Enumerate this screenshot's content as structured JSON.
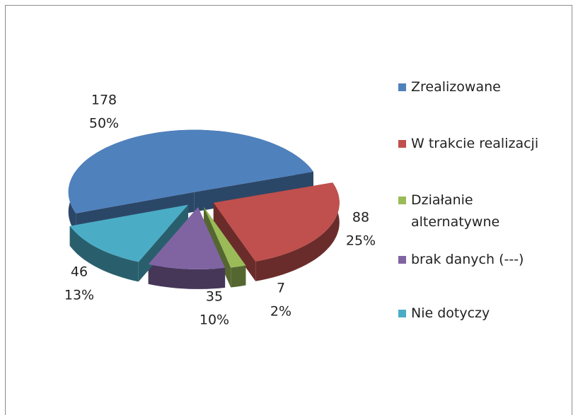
{
  "chart_data": {
    "type": "pie",
    "categories": [
      "Zrealizowane",
      "W trakcie realizacji",
      "Działanie alternatywne",
      "brak danych (---)",
      "Nie dotyczy"
    ],
    "values": [
      178,
      88,
      7,
      35,
      46
    ],
    "percent_labels": [
      "50%",
      "25%",
      "2%",
      "10%",
      "13%"
    ],
    "colors": [
      "#4f81bd",
      "#c0504d",
      "#9bbb59",
      "#8064a2",
      "#4bacc6"
    ],
    "legend": "right"
  }
}
